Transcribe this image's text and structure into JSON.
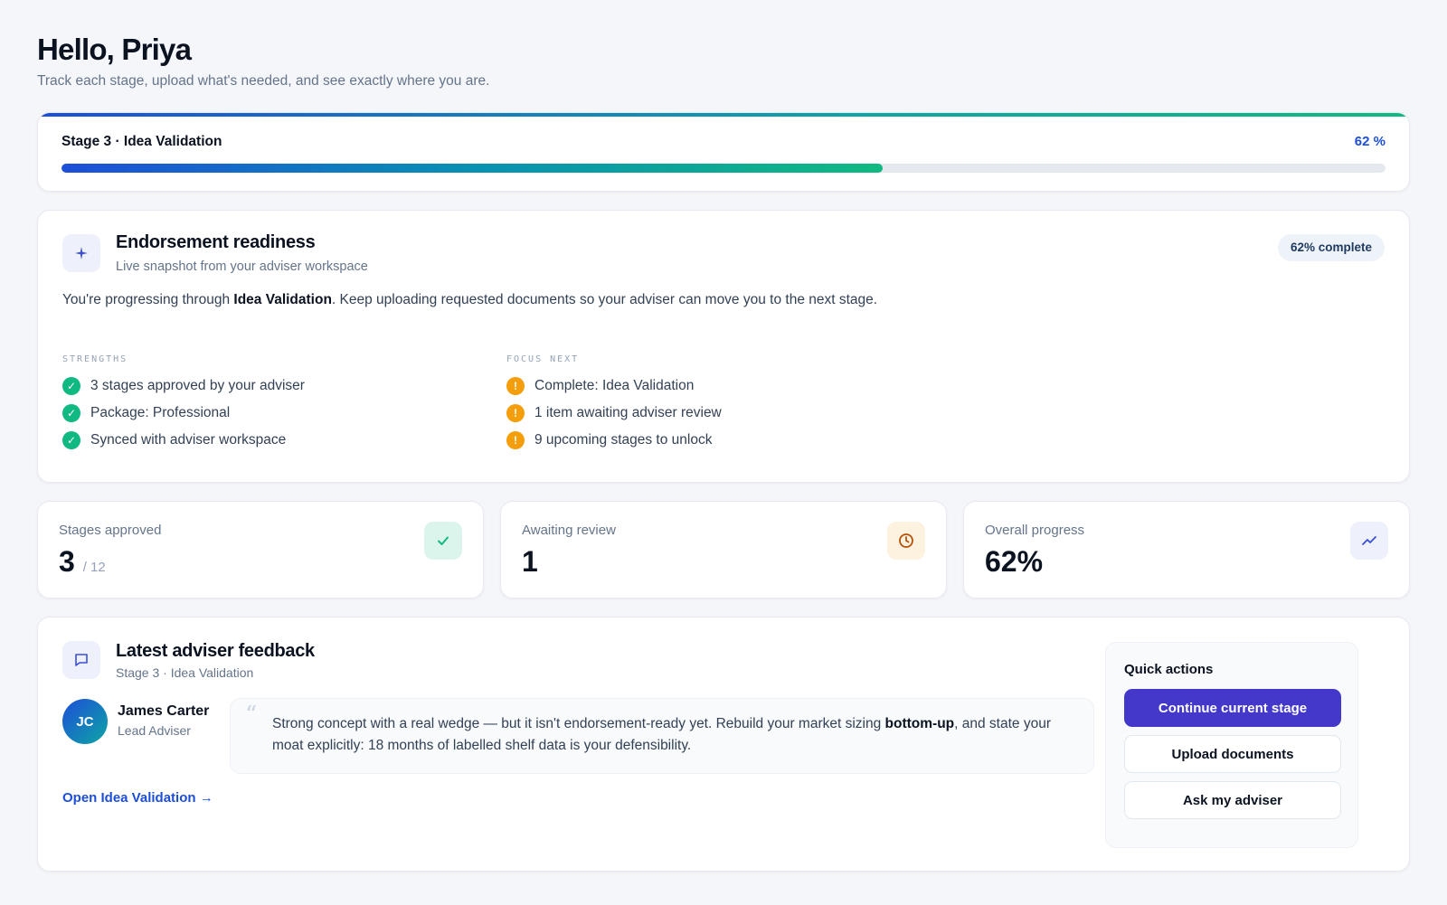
{
  "header": {
    "greeting": "Hello, Priya",
    "subtitle": "Track each stage, upload what's needed, and see exactly where you are."
  },
  "stage_progress": {
    "title": "Stage 3 · Idea Validation",
    "percent_label": "62 %",
    "progress_fraction": 0.62
  },
  "endorsement": {
    "icon": "sparkle-icon",
    "title": "Endorsement readiness",
    "subtitle": "Live snapshot from your adviser workspace",
    "badge": "62% complete",
    "description_pre": "You're progressing through ",
    "description_bold": "Idea Validation",
    "description_post": ". Keep uploading requested documents so your adviser can move you to the next stage.",
    "strengths_label": "STRENGTHS",
    "strengths": [
      "3 stages approved by your adviser",
      "Package: Professional",
      "Synced with adviser workspace"
    ],
    "focus_label": "FOCUS NEXT",
    "focus": [
      "Complete: Idea Validation",
      "1 item awaiting adviser review",
      "9 upcoming stages to unlock"
    ]
  },
  "stats": [
    {
      "label": "Stages approved",
      "value": "3",
      "suffix": "/ 12",
      "icon": "check-icon",
      "color": "#10b981"
    },
    {
      "label": "Awaiting review",
      "value": "1",
      "suffix": "",
      "icon": "clock-icon",
      "color": "#d97706"
    },
    {
      "label": "Overall progress",
      "value": "62%",
      "suffix": "",
      "icon": "trend-up-icon",
      "color": "#3b4fd8"
    }
  ],
  "feedback": {
    "icon": "chat-icon",
    "title": "Latest adviser feedback",
    "subtitle": "Stage 3 · Idea Validation",
    "adviser_initials": "JC",
    "adviser_name": "James Carter",
    "adviser_role": "Lead Adviser",
    "quote_pre": "Strong concept with a real wedge — but it isn't endorsement-ready yet. Rebuild your market sizing ",
    "quote_bold": "bottom-up",
    "quote_post": ", and state your moat explicitly: 18 months of labelled shelf data is your defensibility.",
    "link": "Open Idea Validation →"
  },
  "quick_actions": {
    "title": "Quick actions",
    "primary": "Continue current stage",
    "upload": "Upload documents",
    "ask": "Ask my adviser"
  }
}
